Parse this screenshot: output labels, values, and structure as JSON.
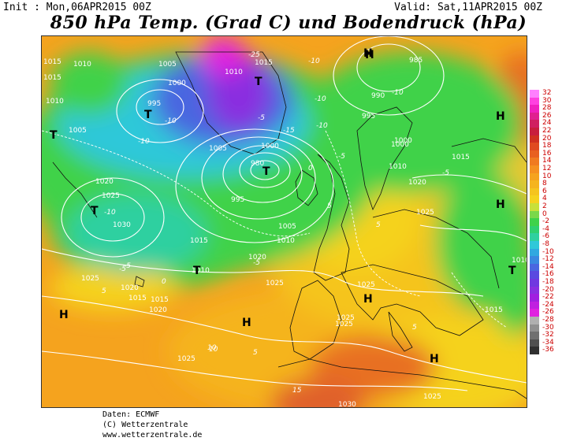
{
  "header": {
    "init": "Init : Mon,06APR2015 00Z",
    "valid": "Valid: Sat,11APR2015 00Z",
    "title": "850 hPa Temp. (Grad C) und Bodendruck (hPa)"
  },
  "credits": {
    "line1": "Daten: ECMWF",
    "line2": "(C) Wetterzentrale",
    "line3": "www.wetterzentrale.de"
  },
  "colors": {
    "warm_orange": "#f5a31e",
    "yellow": "#f5d21e",
    "green": "#3fd24a",
    "cyan": "#2fc8d9",
    "blue": "#4a66e0",
    "purple": "#8a2fe0",
    "magenta": "#e020e0",
    "red_warm": "#e0602a",
    "deep_orange": "#e87020"
  },
  "colorbar": {
    "labels": [
      "32",
      "30",
      "28",
      "26",
      "24",
      "22",
      "20",
      "18",
      "16",
      "14",
      "12",
      "10",
      "8",
      "6",
      "4",
      "2",
      "0",
      "-2",
      "-4",
      "-6",
      "-8",
      "-10",
      "-12",
      "-14",
      "-16",
      "-18",
      "-20",
      "-22",
      "-24",
      "-26",
      "-28",
      "-30",
      "-32",
      "-34",
      "-36"
    ],
    "colors": [
      "#ff80ff",
      "#ff40e0",
      "#f020c0",
      "#e02090",
      "#d02060",
      "#c81e3c",
      "#d03020",
      "#e04a20",
      "#e86020",
      "#f07a20",
      "#f59020",
      "#f5a31e",
      "#f5b41e",
      "#f5c41e",
      "#f5d21e",
      "#c8e03a",
      "#7ad84a",
      "#3fd24a",
      "#30d070",
      "#2fd0a0",
      "#2fc8d9",
      "#30a8e0",
      "#3a88e0",
      "#4a66e0",
      "#5a4ae0",
      "#7038e0",
      "#8a2fe0",
      "#a020e0",
      "#c020e0",
      "#e020e0",
      "#b0b0b0",
      "#909090",
      "#707070",
      "#505050",
      "#303030"
    ]
  },
  "pressure_labels": [
    {
      "t": "1015"
    },
    {
      "t": "1010"
    },
    {
      "t": "1005"
    },
    {
      "t": "1000"
    },
    {
      "t": "995"
    },
    {
      "t": "1015"
    },
    {
      "t": "1010"
    },
    {
      "t": "1005"
    },
    {
      "t": "1000"
    },
    {
      "t": "995"
    },
    {
      "t": "990"
    },
    {
      "t": "985"
    },
    {
      "t": "980"
    },
    {
      "t": "1020"
    },
    {
      "t": "1025"
    },
    {
      "t": "1030"
    },
    {
      "t": "1015"
    },
    {
      "t": "1010"
    },
    {
      "t": "1005"
    },
    {
      "t": "1000"
    },
    {
      "t": "995"
    },
    {
      "t": "1020"
    },
    {
      "t": "1025"
    },
    {
      "t": "1015"
    },
    {
      "t": "1010"
    },
    {
      "t": "1000"
    },
    {
      "t": "1010"
    },
    {
      "t": "1005"
    },
    {
      "t": "1015"
    },
    {
      "t": "1020"
    },
    {
      "t": "1025"
    },
    {
      "t": "1015"
    },
    {
      "t": "1020"
    },
    {
      "t": "1025"
    },
    {
      "t": "1025"
    },
    {
      "t": "1025"
    },
    {
      "t": "1025"
    },
    {
      "t": "1015"
    },
    {
      "t": "1010"
    },
    {
      "t": "1020"
    },
    {
      "t": "1015"
    },
    {
      "t": "1010"
    },
    {
      "t": "1025"
    },
    {
      "t": "1025"
    },
    {
      "t": "1030"
    }
  ],
  "temp_labels": [
    {
      "t": "-25"
    },
    {
      "t": "-10"
    },
    {
      "t": "-10"
    },
    {
      "t": "-5"
    },
    {
      "t": "-10"
    },
    {
      "t": "-10"
    },
    {
      "t": "-10"
    },
    {
      "t": "-5"
    },
    {
      "t": "-15"
    },
    {
      "t": "-10"
    },
    {
      "t": "-10"
    },
    {
      "t": "-5"
    },
    {
      "t": "-5"
    },
    {
      "t": "0"
    },
    {
      "t": "5"
    },
    {
      "t": "5"
    },
    {
      "t": "10"
    },
    {
      "t": "5"
    },
    {
      "t": "15"
    },
    {
      "t": "5"
    },
    {
      "t": "-5"
    },
    {
      "t": "0"
    },
    {
      "t": "-5"
    },
    {
      "t": "5"
    },
    {
      "t": "10"
    }
  ],
  "hl_labels": [
    {
      "t": "T"
    },
    {
      "t": "T"
    },
    {
      "t": "T"
    },
    {
      "t": "T"
    },
    {
      "t": "T"
    },
    {
      "t": "H"
    },
    {
      "t": "H"
    },
    {
      "t": "H"
    },
    {
      "t": "H"
    },
    {
      "t": "H"
    },
    {
      "t": "H"
    },
    {
      "t": "T"
    },
    {
      "t": "T"
    },
    {
      "t": "H"
    },
    {
      "t": "H"
    }
  ]
}
